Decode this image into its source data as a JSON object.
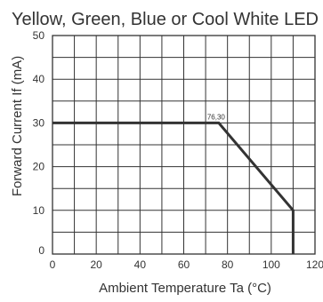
{
  "chart_data": {
    "type": "line",
    "title": "Yellow, Green, Blue or Cool White LED",
    "xlabel": "Ambient Temperature Ta (°C)",
    "ylabel": "Forward Current If (mA)",
    "xlim": [
      0,
      120
    ],
    "ylim": [
      0,
      50
    ],
    "x_ticks": [
      0,
      20,
      40,
      60,
      80,
      100,
      120
    ],
    "y_ticks": [
      0,
      10,
      20,
      30,
      40,
      50
    ],
    "grid": true,
    "series": [
      {
        "x": [
          0,
          76,
          110,
          110
        ],
        "y": [
          30,
          30,
          10,
          0
        ],
        "color": "#333333"
      }
    ],
    "annotations": [
      {
        "text": "76,30",
        "x": 76,
        "y": 30
      }
    ]
  }
}
